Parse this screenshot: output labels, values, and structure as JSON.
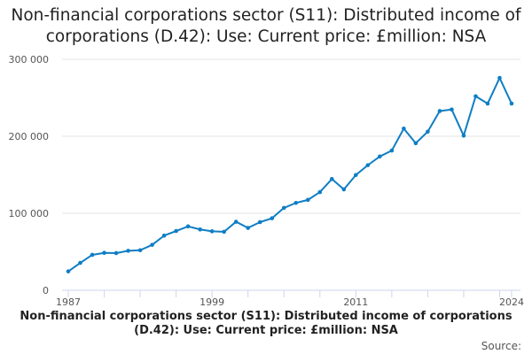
{
  "chart_data": {
    "type": "line",
    "title": "Non-financial corporations sector (S11): Distributed income of corporations (D.42): Use: Current price: £million: NSA",
    "xlabel": "Non-financial corporations sector (S11): Distributed income of corporations (D.42): Use: Current price: £million: NSA",
    "ylabel": "",
    "source_label": "Source:",
    "x": [
      1987,
      1988,
      1989,
      1990,
      1991,
      1992,
      1993,
      1994,
      1995,
      1996,
      1997,
      1998,
      1999,
      2000,
      2001,
      2002,
      2003,
      2004,
      2005,
      2006,
      2007,
      2008,
      2009,
      2010,
      2011,
      2012,
      2013,
      2014,
      2015,
      2016,
      2017,
      2018,
      2019,
      2020,
      2021,
      2022,
      2023,
      2024
    ],
    "series": [
      {
        "name": "Distributed income of corporations",
        "color": "#0f7ec4",
        "values": [
          24500,
          35600,
          46000,
          48600,
          48300,
          51300,
          52000,
          59000,
          71000,
          77000,
          83000,
          79000,
          76600,
          76000,
          89000,
          81000,
          88500,
          93500,
          107000,
          113500,
          117400,
          127500,
          144500,
          131000,
          149700,
          162500,
          173800,
          181500,
          210000,
          191000,
          206000,
          232800,
          234800,
          200800,
          252000,
          242500,
          275800,
          242500
        ]
      }
    ],
    "ylim": [
      0,
      300000
    ],
    "yticks": [
      {
        "value": 0,
        "label": "0"
      },
      {
        "value": 100000,
        "label": "100 000"
      },
      {
        "value": 200000,
        "label": "200 000"
      },
      {
        "value": 300000,
        "label": "300 000"
      }
    ],
    "xtick_labels": [
      {
        "value": 1987,
        "label": "1987"
      },
      {
        "value": 1999,
        "label": "1999"
      },
      {
        "value": 2011,
        "label": "2011"
      },
      {
        "value": 2024,
        "label": "2024"
      }
    ],
    "grid": true,
    "legend": "none"
  }
}
